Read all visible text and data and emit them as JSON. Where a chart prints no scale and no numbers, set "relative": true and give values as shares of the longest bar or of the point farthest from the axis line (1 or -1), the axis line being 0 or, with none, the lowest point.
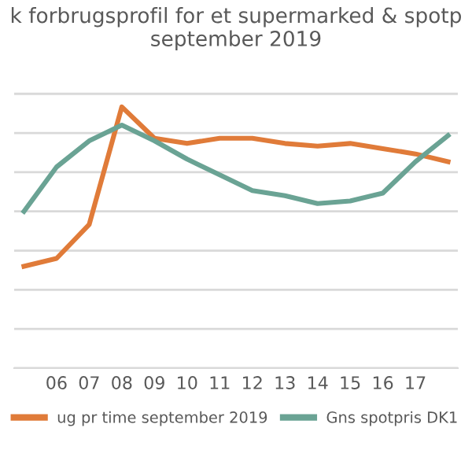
{
  "chart_data": {
    "type": "line",
    "title": "k forbrugsprofil for et supermarked & spotp\nseptember 2019",
    "categories": [
      null,
      "06",
      "07",
      "08",
      "09",
      "10",
      "11",
      "12",
      "13",
      "14",
      "15",
      "16",
      "17",
      null
    ],
    "relative": true,
    "grid": "y",
    "legend": "bottom",
    "tick_labels": "x",
    "marker": "none",
    "line_style": "solid",
    "series": [
      {
        "name": "ug pr time september 2019",
        "color": "#e07b39",
        "values": [
          0.39,
          0.42,
          0.55,
          1,
          0.88,
          0.86,
          0.88,
          0.88,
          0.86,
          0.85,
          0.86,
          0.84,
          0.82,
          0.79
        ]
      },
      {
        "name": "Gns spotpris DK1",
        "color": "#6aa394",
        "values": [
          0.6,
          0.77,
          0.87,
          0.93,
          0.87,
          0.8,
          0.74,
          0.68,
          0.66,
          0.63,
          0.64,
          0.67,
          0.79,
          0.89
        ]
      }
    ]
  }
}
